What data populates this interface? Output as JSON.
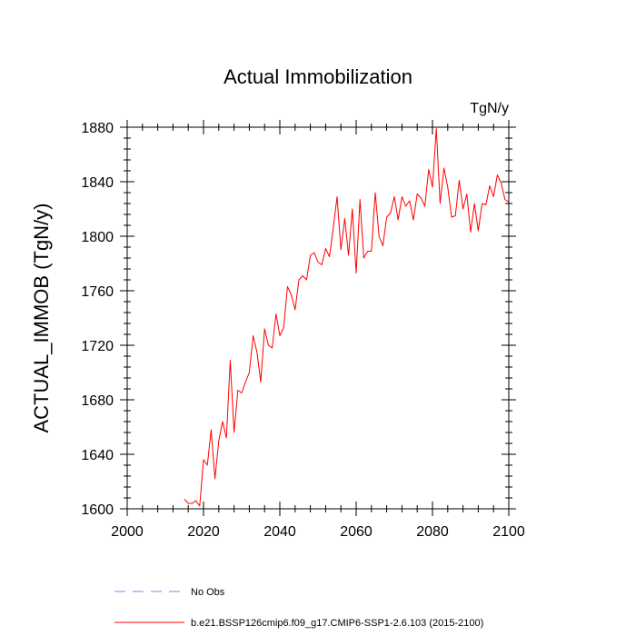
{
  "chart_data": {
    "type": "line",
    "title": "Actual Immobilization",
    "units": "TgN/y",
    "xlabel": "",
    "ylabel": "ACTUAL_IMMOB  (TgN/y)",
    "xlim": [
      2000,
      2100
    ],
    "ylim": [
      1600,
      1880
    ],
    "xticks": [
      2000,
      2020,
      2040,
      2060,
      2080,
      2100
    ],
    "yticks": [
      1600,
      1640,
      1680,
      1720,
      1760,
      1800,
      1840,
      1880
    ],
    "grid": false,
    "legend_position": "bottom",
    "series": [
      {
        "name": "No Obs",
        "style": "dashed",
        "color": "#8080ff",
        "x": [],
        "values": []
      },
      {
        "name": "b.e21.BSSP126cmip6.f09_g17.CMIP6-SSP1-2.6.103 (2015-2100)",
        "style": "solid",
        "color": "#ff0000",
        "x": [
          2015,
          2016,
          2017,
          2018,
          2019,
          2020,
          2021,
          2022,
          2023,
          2024,
          2025,
          2026,
          2027,
          2028,
          2029,
          2030,
          2031,
          2032,
          2033,
          2034,
          2035,
          2036,
          2037,
          2038,
          2039,
          2040,
          2041,
          2042,
          2043,
          2044,
          2045,
          2046,
          2047,
          2048,
          2049,
          2050,
          2051,
          2052,
          2053,
          2054,
          2055,
          2056,
          2057,
          2058,
          2059,
          2060,
          2061,
          2062,
          2063,
          2064,
          2065,
          2066,
          2067,
          2068,
          2069,
          2070,
          2071,
          2072,
          2073,
          2074,
          2075,
          2076,
          2077,
          2078,
          2079,
          2080,
          2081,
          2082,
          2083,
          2084,
          2085,
          2086,
          2087,
          2088,
          2089,
          2090,
          2091,
          2092,
          2093,
          2094,
          2095,
          2096,
          2097,
          2098,
          2099,
          2100
        ],
        "values": [
          1607,
          1604,
          1604,
          1606,
          1602,
          1636,
          1632,
          1658,
          1622,
          1650,
          1664,
          1652,
          1709,
          1656,
          1687,
          1685,
          1693,
          1700,
          1727,
          1715,
          1693,
          1732,
          1720,
          1718,
          1743,
          1727,
          1733,
          1763,
          1757,
          1746,
          1768,
          1771,
          1768,
          1786,
          1788,
          1781,
          1779,
          1791,
          1785,
          1806,
          1829,
          1790,
          1813,
          1786,
          1820,
          1773,
          1827,
          1784,
          1789,
          1789,
          1832,
          1800,
          1793,
          1814,
          1817,
          1829,
          1812,
          1829,
          1822,
          1826,
          1812,
          1831,
          1828,
          1822,
          1849,
          1836,
          1879,
          1824,
          1850,
          1836,
          1814,
          1815,
          1841,
          1820,
          1831,
          1803,
          1824,
          1804,
          1824,
          1823,
          1837,
          1829,
          1845,
          1839,
          1827,
          1825
        ]
      }
    ]
  }
}
